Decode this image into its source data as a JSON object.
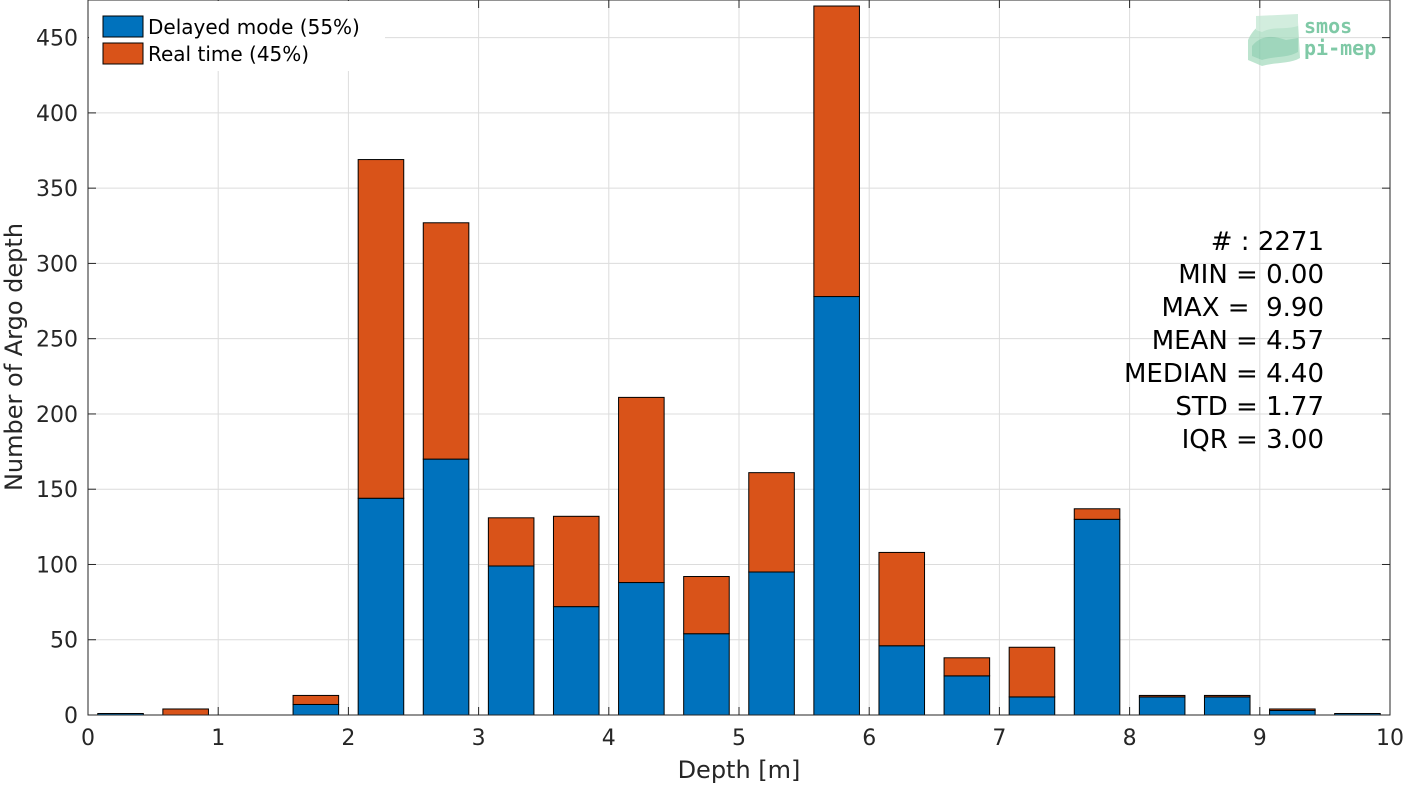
{
  "chart_data": {
    "type": "bar",
    "stacked": true,
    "xlabel": "Depth [m]",
    "ylabel": "Number of Argo depth",
    "xlim": [
      0,
      10
    ],
    "ylim": [
      0,
      475
    ],
    "xticks": [
      "0",
      "1",
      "2",
      "3",
      "4",
      "5",
      "6",
      "7",
      "8",
      "9",
      "10"
    ],
    "yticks": [
      "0",
      "50",
      "100",
      "150",
      "200",
      "250",
      "300",
      "350",
      "400",
      "450"
    ],
    "grid": true,
    "legend_placement": "top-left",
    "bin_width": 0.35,
    "x": [
      0.25,
      0.75,
      1.25,
      1.75,
      2.25,
      2.75,
      3.25,
      3.75,
      4.25,
      4.75,
      5.25,
      5.75,
      6.25,
      6.75,
      7.25,
      7.75,
      8.25,
      8.75,
      9.25,
      9.75
    ],
    "series": [
      {
        "name": "Delayed mode (55%)",
        "color": "#0072BD",
        "values": [
          1,
          0,
          0,
          7,
          144,
          170,
          99,
          72,
          88,
          54,
          95,
          278,
          46,
          26,
          12,
          130,
          12,
          12,
          3,
          1
        ]
      },
      {
        "name": "Real time (45%)",
        "color": "#D95319",
        "values": [
          0,
          4,
          0,
          6,
          225,
          157,
          32,
          60,
          123,
          38,
          66,
          193,
          62,
          12,
          33,
          7,
          1,
          1,
          1,
          0
        ]
      }
    ],
    "stats": [
      "# : 2271",
      "MIN = 0.00",
      "MAX =  9.90",
      "MEAN = 4.57",
      "MEDIAN = 4.40",
      "STD = 1.77",
      "IQR = 3.00"
    ]
  },
  "logo": {
    "line1": "smos",
    "line2": "pi-mep",
    "color": "#7fc9a6"
  }
}
